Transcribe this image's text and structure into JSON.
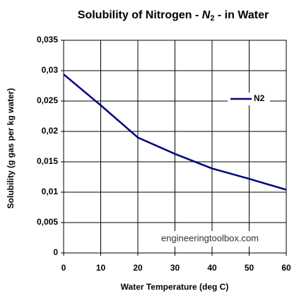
{
  "chart_data": {
    "type": "line",
    "title": [
      "Solubility of Nitrogen - ",
      "N",
      "2",
      " - in Water"
    ],
    "x_label": "Water Temperature (deg C)",
    "y_label": "Solubility (g gas per kg water)",
    "annotation": "engineeringtoolbox.com",
    "x": [
      0,
      10,
      20,
      30,
      40,
      50,
      60
    ],
    "series": [
      {
        "name": "N2",
        "color": "#000080",
        "values": [
          0.0294,
          0.0243,
          0.019,
          0.0163,
          0.0139,
          0.0122,
          0.0104
        ]
      }
    ],
    "xlim": [
      0,
      60
    ],
    "xticks": [
      0,
      10,
      20,
      30,
      40,
      50,
      60
    ],
    "ylim": [
      0,
      0.035
    ],
    "yticks": [
      0,
      {
        "value": 0.005,
        "label": "0,005"
      },
      {
        "value": 0.01,
        "label": "0,01"
      },
      {
        "value": 0.015,
        "label": "0,015"
      },
      {
        "value": 0.02,
        "label": "0,02"
      },
      {
        "value": 0.025,
        "label": "0,025"
      },
      {
        "value": 0.03,
        "label": "0,03"
      },
      {
        "value": 0.035,
        "label": "0,035"
      }
    ],
    "grid": true,
    "legend": "upper right"
  }
}
